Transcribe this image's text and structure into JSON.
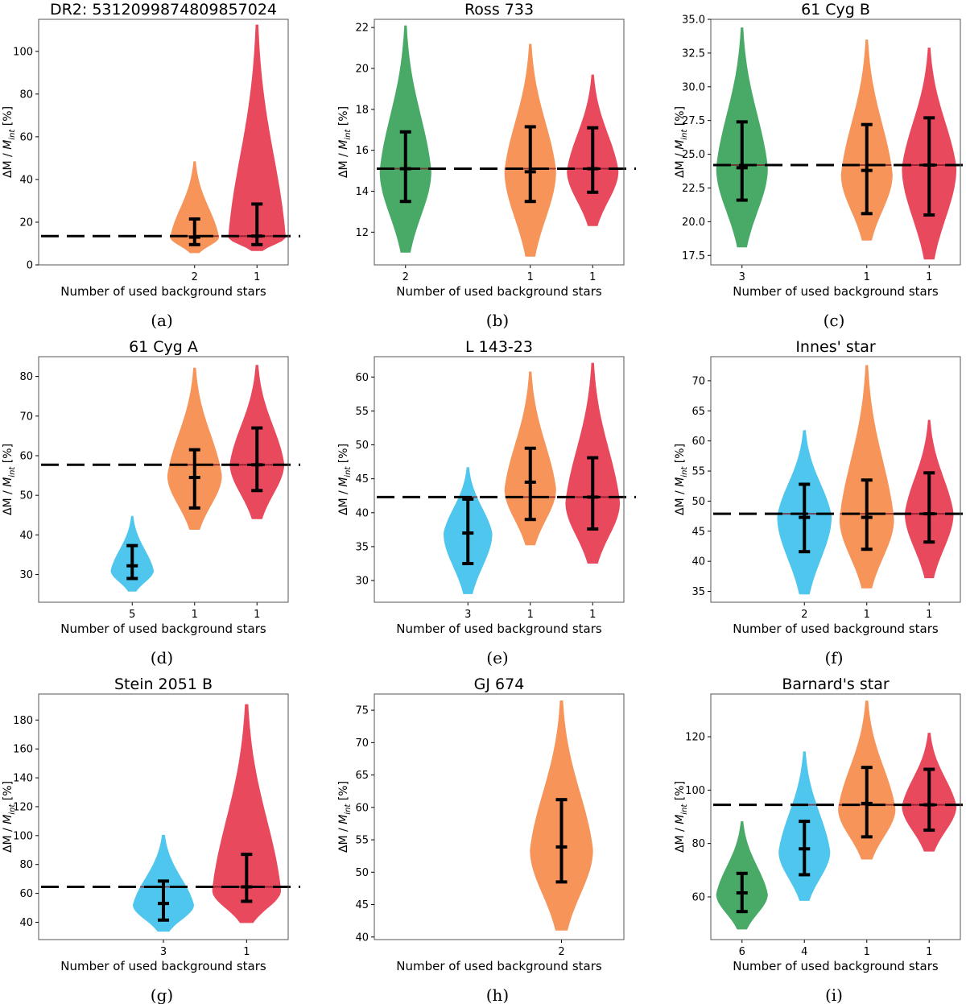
{
  "colors": {
    "green": "#3aa35b",
    "orange": "#f58b4c",
    "red": "#e6394f",
    "blue": "#3fc1ec",
    "frame": "#555555"
  },
  "ylabel_parts": {
    "delta": "ΔM",
    "sep": " / ",
    "m": "M",
    "sub": "int",
    "unit": " [%]"
  },
  "chart_data": [
    {
      "type": "violin",
      "title": "DR2: 5312099874809857024",
      "caption": "(a)",
      "xlabel": "Number of used background stars",
      "ylim": [
        0,
        115
      ],
      "yticks": [
        0,
        20,
        40,
        60,
        80,
        100
      ],
      "tick_format": "int",
      "slots": 4,
      "reference": 13.5,
      "violins": [
        {
          "slot": 2,
          "label": "2",
          "color": "orange",
          "median": 13,
          "err_low": 9.5,
          "err_high": 21.5,
          "min": 5.5,
          "max": 48.5,
          "kde_peak": 13,
          "width": 0.85
        },
        {
          "slot": 3,
          "label": "1",
          "color": "red",
          "median": 13.5,
          "err_low": 9.5,
          "err_high": 28.5,
          "min": 6.5,
          "max": 112.5,
          "kde_peak": 13,
          "width": 1.0
        }
      ]
    },
    {
      "type": "violin",
      "title": "Ross 733",
      "caption": "(b)",
      "xlabel": "Number of used background stars",
      "ylim": [
        10.4,
        22.4
      ],
      "yticks": [
        12,
        14,
        16,
        18,
        20,
        22
      ],
      "tick_format": "int",
      "slots": 4,
      "reference": 15.1,
      "violins": [
        {
          "slot": 0,
          "label": "2",
          "color": "green",
          "median": 15.1,
          "err_low": 13.5,
          "err_high": 16.9,
          "min": 11.0,
          "max": 22.1,
          "kde_peak": 15.0,
          "width": 0.9
        },
        {
          "slot": 2,
          "label": "1",
          "color": "orange",
          "median": 14.95,
          "err_low": 13.5,
          "err_high": 17.15,
          "min": 10.8,
          "max": 21.2,
          "kde_peak": 15.0,
          "width": 0.9
        },
        {
          "slot": 3,
          "label": "1",
          "color": "red",
          "median": 15.1,
          "err_low": 13.95,
          "err_high": 17.1,
          "min": 12.3,
          "max": 19.7,
          "kde_peak": 15.0,
          "width": 0.9
        }
      ]
    },
    {
      "type": "violin",
      "title": "61 Cyg B",
      "caption": "(c)",
      "xlabel": "Number of used background stars",
      "ylim": [
        16.8,
        35.0
      ],
      "yticks": [
        17.5,
        20.0,
        22.5,
        25.0,
        27.5,
        30.0,
        32.5,
        35.0
      ],
      "tick_format": "1dp",
      "slots": 4,
      "reference": 24.2,
      "violins": [
        {
          "slot": 0,
          "label": "3",
          "color": "green",
          "median": 24.0,
          "err_low": 21.6,
          "err_high": 27.4,
          "min": 18.1,
          "max": 34.4,
          "kde_peak": 24.0,
          "width": 0.9
        },
        {
          "slot": 2,
          "label": "1",
          "color": "orange",
          "median": 23.8,
          "err_low": 20.6,
          "err_high": 27.2,
          "min": 18.6,
          "max": 33.5,
          "kde_peak": 23.5,
          "width": 0.9
        },
        {
          "slot": 3,
          "label": "1",
          "color": "red",
          "median": 24.2,
          "err_low": 20.5,
          "err_high": 27.7,
          "min": 17.2,
          "max": 32.9,
          "kde_peak": 24.0,
          "width": 0.95
        }
      ]
    },
    {
      "type": "violin",
      "title": "61 Cyg A",
      "caption": "(d)",
      "xlabel": "Number of used background stars",
      "ylim": [
        23,
        85
      ],
      "yticks": [
        30,
        40,
        50,
        60,
        70,
        80
      ],
      "tick_format": "int",
      "slots": 4,
      "reference": 57.7,
      "violins": [
        {
          "slot": 1,
          "label": "5",
          "color": "blue",
          "median": 32.2,
          "err_low": 29.0,
          "err_high": 37.3,
          "min": 25.7,
          "max": 44.8,
          "kde_peak": 31.0,
          "width": 0.75
        },
        {
          "slot": 2,
          "label": "1",
          "color": "orange",
          "median": 54.5,
          "err_low": 46.8,
          "err_high": 61.5,
          "min": 41.3,
          "max": 82.2,
          "kde_peak": 55.0,
          "width": 0.95
        },
        {
          "slot": 3,
          "label": "1",
          "color": "red",
          "median": 57.7,
          "err_low": 51.2,
          "err_high": 67.0,
          "min": 44.0,
          "max": 82.9,
          "kde_peak": 58.0,
          "width": 0.95
        }
      ]
    },
    {
      "type": "violin",
      "title": "L 143-23",
      "caption": "(e)",
      "xlabel": "Number of used background stars",
      "ylim": [
        26.8,
        63
      ],
      "yticks": [
        30,
        35,
        40,
        45,
        50,
        55,
        60
      ],
      "tick_format": "int",
      "slots": 4,
      "reference": 42.3,
      "violins": [
        {
          "slot": 1,
          "label": "3",
          "color": "blue",
          "median": 37.0,
          "err_low": 32.5,
          "err_high": 42.0,
          "min": 28.0,
          "max": 46.7,
          "kde_peak": 37.0,
          "width": 0.85
        },
        {
          "slot": 2,
          "label": "1",
          "color": "orange",
          "median": 44.5,
          "err_low": 39.0,
          "err_high": 49.5,
          "min": 35.2,
          "max": 60.8,
          "kde_peak": 43.5,
          "width": 0.9
        },
        {
          "slot": 3,
          "label": "1",
          "color": "red",
          "median": 42.3,
          "err_low": 37.6,
          "err_high": 48.1,
          "min": 32.5,
          "max": 62.1,
          "kde_peak": 41.5,
          "width": 0.95
        }
      ]
    },
    {
      "type": "violin",
      "title": "Innes' star",
      "caption": "(f)",
      "xlabel": "Number of used background stars",
      "ylim": [
        33.2,
        74
      ],
      "yticks": [
        35,
        40,
        45,
        50,
        55,
        60,
        65,
        70
      ],
      "tick_format": "int",
      "slots": 4,
      "reference": 47.9,
      "violins": [
        {
          "slot": 1,
          "label": "2",
          "color": "blue",
          "median": 47.3,
          "err_low": 41.6,
          "err_high": 52.8,
          "min": 34.5,
          "max": 61.8,
          "kde_peak": 47.5,
          "width": 0.95
        },
        {
          "slot": 2,
          "label": "1",
          "color": "orange",
          "median": 47.3,
          "err_low": 42.0,
          "err_high": 53.5,
          "min": 35.5,
          "max": 72.6,
          "kde_peak": 47.0,
          "width": 0.95
        },
        {
          "slot": 3,
          "label": "1",
          "color": "red",
          "median": 47.9,
          "err_low": 43.2,
          "err_high": 54.7,
          "min": 37.2,
          "max": 63.5,
          "kde_peak": 48.0,
          "width": 0.85
        }
      ]
    },
    {
      "type": "violin",
      "title": "Stein 2051 B",
      "caption": "(g)",
      "xlabel": "Number of used background stars",
      "ylim": [
        28,
        198
      ],
      "yticks": [
        40,
        60,
        80,
        100,
        120,
        140,
        160,
        180
      ],
      "tick_format": "int",
      "slots": 3,
      "reference": 64.5,
      "violins": [
        {
          "slot": 1,
          "label": "3",
          "color": "blue",
          "median": 53.0,
          "err_low": 41.5,
          "err_high": 68.5,
          "min": 33.5,
          "max": 100.5,
          "kde_peak": 52.0,
          "width": 0.8
        },
        {
          "slot": 2,
          "label": "1",
          "color": "red",
          "median": 64.5,
          "err_low": 54.5,
          "err_high": 87.0,
          "min": 39.5,
          "max": 191.0,
          "kde_peak": 62.0,
          "width": 0.9
        }
      ]
    },
    {
      "type": "violin",
      "title": "GJ 674",
      "caption": "(h)",
      "xlabel": "Number of used background stars",
      "ylim": [
        39.6,
        77.5
      ],
      "yticks": [
        40,
        45,
        50,
        55,
        60,
        65,
        70,
        75
      ],
      "tick_format": "int",
      "slots": 2,
      "reference": null,
      "violins": [
        {
          "slot": 1,
          "label": "2",
          "color": "orange",
          "median": 53.9,
          "err_low": 48.5,
          "err_high": 61.2,
          "min": 41.0,
          "max": 76.5,
          "kde_peak": 53.5,
          "width": 0.55
        }
      ]
    },
    {
      "type": "violin",
      "title": "Barnard's star",
      "caption": "(i)",
      "xlabel": "Number of used background stars",
      "ylim": [
        44,
        136
      ],
      "yticks": [
        60,
        80,
        100,
        120
      ],
      "tick_format": "int",
      "slots": 4,
      "reference": 94.5,
      "violins": [
        {
          "slot": 0,
          "label": "6",
          "color": "green",
          "median": 61.5,
          "err_low": 54.5,
          "err_high": 68.8,
          "min": 47.8,
          "max": 88.3,
          "kde_peak": 61.0,
          "width": 0.9
        },
        {
          "slot": 1,
          "label": "4",
          "color": "blue",
          "median": 78.0,
          "err_low": 68.3,
          "err_high": 88.3,
          "min": 58.5,
          "max": 114.5,
          "kde_peak": 77.0,
          "width": 0.9
        },
        {
          "slot": 2,
          "label": "1",
          "color": "orange",
          "median": 95.0,
          "err_low": 82.5,
          "err_high": 108.5,
          "min": 74.0,
          "max": 133.5,
          "kde_peak": 93.0,
          "width": 1.0
        },
        {
          "slot": 3,
          "label": "1",
          "color": "red",
          "median": 94.5,
          "err_low": 85.0,
          "err_high": 107.8,
          "min": 77.0,
          "max": 121.5,
          "kde_peak": 94.0,
          "width": 0.95
        }
      ]
    }
  ]
}
